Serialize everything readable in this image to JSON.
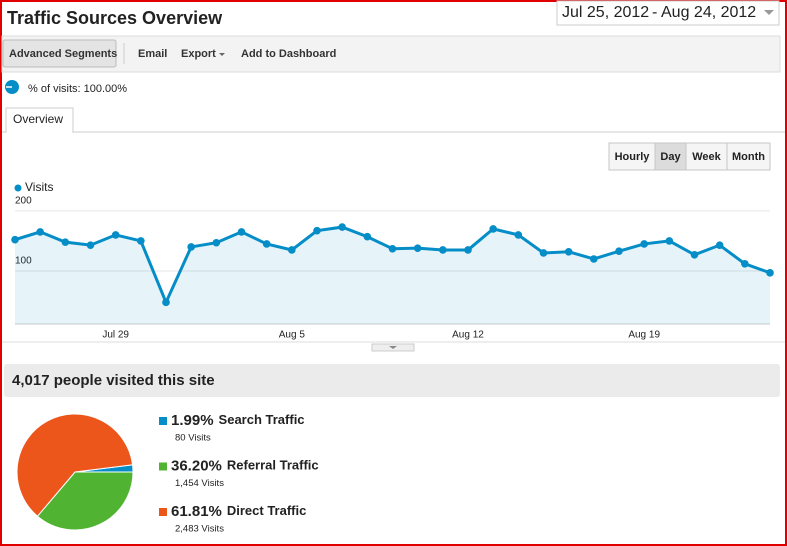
{
  "header": {
    "title": "Traffic Sources Overview",
    "date_range": {
      "start": "Jul 25, 2012",
      "separator": "-",
      "end": "Aug 24, 2012"
    }
  },
  "toolbar": {
    "segments_button": "Advanced Segments",
    "actions": [
      "Email",
      "Export",
      "Add to Dashboard"
    ]
  },
  "segment": {
    "label": "% of visits: 100.00%"
  },
  "tabs": [
    "Overview"
  ],
  "granularity": {
    "options": [
      "Hourly",
      "Day",
      "Week",
      "Month"
    ],
    "selected": "Day"
  },
  "chart_data": [
    {
      "type": "line",
      "categories": [
        null,
        null,
        null,
        null,
        "Jul 29",
        null,
        null,
        null,
        null,
        null,
        null,
        "Aug 5",
        null,
        null,
        null,
        null,
        null,
        null,
        "Aug 12",
        null,
        null,
        null,
        null,
        null,
        null,
        "Aug 19",
        null,
        null,
        null,
        null,
        null
      ],
      "series": [
        {
          "name": "Visits",
          "color": "#058dc7",
          "values": [
            152,
            165,
            148,
            143,
            160,
            150,
            48,
            140,
            147,
            165,
            145,
            135,
            167,
            173,
            157,
            137,
            138,
            135,
            135,
            170,
            160,
            130,
            132,
            120,
            133,
            145,
            150,
            127,
            143,
            112,
            97
          ]
        }
      ],
      "ylim": [
        12,
        218
      ],
      "yticks": [
        100,
        200
      ],
      "grid": true,
      "legend": "top-left"
    },
    {
      "type": "pie",
      "title": "4,017 people visited this site",
      "categories": [
        "Search Traffic",
        "Referral Traffic",
        "Direct Traffic"
      ],
      "values": [
        1.99,
        36.2,
        61.81
      ],
      "value_labels": [
        "1.99%",
        "36.20%",
        "61.81%"
      ],
      "visit_labels": [
        "80 Visits",
        "1,454 Visits",
        "2,483 Visits"
      ],
      "colors": [
        "#058dc7",
        "#50b432",
        "#ed561b"
      ]
    }
  ]
}
